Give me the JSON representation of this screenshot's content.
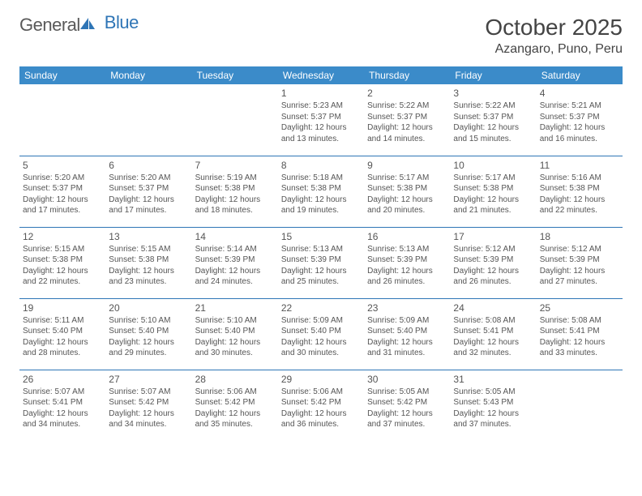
{
  "brand": {
    "name_part1": "General",
    "name_part2": "Blue"
  },
  "title": "October 2025",
  "location": "Azangaro, Puno, Peru",
  "header_row": [
    "Sunday",
    "Monday",
    "Tuesday",
    "Wednesday",
    "Thursday",
    "Friday",
    "Saturday"
  ],
  "colors": {
    "header_bg": "#3b8bc9",
    "header_text": "#ffffff",
    "border": "#2e75b6",
    "body_text": "#555555"
  },
  "weeks": [
    [
      {
        "n": "",
        "lines": []
      },
      {
        "n": "",
        "lines": []
      },
      {
        "n": "",
        "lines": []
      },
      {
        "n": "1",
        "lines": [
          "Sunrise: 5:23 AM",
          "Sunset: 5:37 PM",
          "Daylight: 12 hours",
          "and 13 minutes."
        ]
      },
      {
        "n": "2",
        "lines": [
          "Sunrise: 5:22 AM",
          "Sunset: 5:37 PM",
          "Daylight: 12 hours",
          "and 14 minutes."
        ]
      },
      {
        "n": "3",
        "lines": [
          "Sunrise: 5:22 AM",
          "Sunset: 5:37 PM",
          "Daylight: 12 hours",
          "and 15 minutes."
        ]
      },
      {
        "n": "4",
        "lines": [
          "Sunrise: 5:21 AM",
          "Sunset: 5:37 PM",
          "Daylight: 12 hours",
          "and 16 minutes."
        ]
      }
    ],
    [
      {
        "n": "5",
        "lines": [
          "Sunrise: 5:20 AM",
          "Sunset: 5:37 PM",
          "Daylight: 12 hours",
          "and 17 minutes."
        ]
      },
      {
        "n": "6",
        "lines": [
          "Sunrise: 5:20 AM",
          "Sunset: 5:37 PM",
          "Daylight: 12 hours",
          "and 17 minutes."
        ]
      },
      {
        "n": "7",
        "lines": [
          "Sunrise: 5:19 AM",
          "Sunset: 5:38 PM",
          "Daylight: 12 hours",
          "and 18 minutes."
        ]
      },
      {
        "n": "8",
        "lines": [
          "Sunrise: 5:18 AM",
          "Sunset: 5:38 PM",
          "Daylight: 12 hours",
          "and 19 minutes."
        ]
      },
      {
        "n": "9",
        "lines": [
          "Sunrise: 5:17 AM",
          "Sunset: 5:38 PM",
          "Daylight: 12 hours",
          "and 20 minutes."
        ]
      },
      {
        "n": "10",
        "lines": [
          "Sunrise: 5:17 AM",
          "Sunset: 5:38 PM",
          "Daylight: 12 hours",
          "and 21 minutes."
        ]
      },
      {
        "n": "11",
        "lines": [
          "Sunrise: 5:16 AM",
          "Sunset: 5:38 PM",
          "Daylight: 12 hours",
          "and 22 minutes."
        ]
      }
    ],
    [
      {
        "n": "12",
        "lines": [
          "Sunrise: 5:15 AM",
          "Sunset: 5:38 PM",
          "Daylight: 12 hours",
          "and 22 minutes."
        ]
      },
      {
        "n": "13",
        "lines": [
          "Sunrise: 5:15 AM",
          "Sunset: 5:38 PM",
          "Daylight: 12 hours",
          "and 23 minutes."
        ]
      },
      {
        "n": "14",
        "lines": [
          "Sunrise: 5:14 AM",
          "Sunset: 5:39 PM",
          "Daylight: 12 hours",
          "and 24 minutes."
        ]
      },
      {
        "n": "15",
        "lines": [
          "Sunrise: 5:13 AM",
          "Sunset: 5:39 PM",
          "Daylight: 12 hours",
          "and 25 minutes."
        ]
      },
      {
        "n": "16",
        "lines": [
          "Sunrise: 5:13 AM",
          "Sunset: 5:39 PM",
          "Daylight: 12 hours",
          "and 26 minutes."
        ]
      },
      {
        "n": "17",
        "lines": [
          "Sunrise: 5:12 AM",
          "Sunset: 5:39 PM",
          "Daylight: 12 hours",
          "and 26 minutes."
        ]
      },
      {
        "n": "18",
        "lines": [
          "Sunrise: 5:12 AM",
          "Sunset: 5:39 PM",
          "Daylight: 12 hours",
          "and 27 minutes."
        ]
      }
    ],
    [
      {
        "n": "19",
        "lines": [
          "Sunrise: 5:11 AM",
          "Sunset: 5:40 PM",
          "Daylight: 12 hours",
          "and 28 minutes."
        ]
      },
      {
        "n": "20",
        "lines": [
          "Sunrise: 5:10 AM",
          "Sunset: 5:40 PM",
          "Daylight: 12 hours",
          "and 29 minutes."
        ]
      },
      {
        "n": "21",
        "lines": [
          "Sunrise: 5:10 AM",
          "Sunset: 5:40 PM",
          "Daylight: 12 hours",
          "and 30 minutes."
        ]
      },
      {
        "n": "22",
        "lines": [
          "Sunrise: 5:09 AM",
          "Sunset: 5:40 PM",
          "Daylight: 12 hours",
          "and 30 minutes."
        ]
      },
      {
        "n": "23",
        "lines": [
          "Sunrise: 5:09 AM",
          "Sunset: 5:40 PM",
          "Daylight: 12 hours",
          "and 31 minutes."
        ]
      },
      {
        "n": "24",
        "lines": [
          "Sunrise: 5:08 AM",
          "Sunset: 5:41 PM",
          "Daylight: 12 hours",
          "and 32 minutes."
        ]
      },
      {
        "n": "25",
        "lines": [
          "Sunrise: 5:08 AM",
          "Sunset: 5:41 PM",
          "Daylight: 12 hours",
          "and 33 minutes."
        ]
      }
    ],
    [
      {
        "n": "26",
        "lines": [
          "Sunrise: 5:07 AM",
          "Sunset: 5:41 PM",
          "Daylight: 12 hours",
          "and 34 minutes."
        ]
      },
      {
        "n": "27",
        "lines": [
          "Sunrise: 5:07 AM",
          "Sunset: 5:42 PM",
          "Daylight: 12 hours",
          "and 34 minutes."
        ]
      },
      {
        "n": "28",
        "lines": [
          "Sunrise: 5:06 AM",
          "Sunset: 5:42 PM",
          "Daylight: 12 hours",
          "and 35 minutes."
        ]
      },
      {
        "n": "29",
        "lines": [
          "Sunrise: 5:06 AM",
          "Sunset: 5:42 PM",
          "Daylight: 12 hours",
          "and 36 minutes."
        ]
      },
      {
        "n": "30",
        "lines": [
          "Sunrise: 5:05 AM",
          "Sunset: 5:42 PM",
          "Daylight: 12 hours",
          "and 37 minutes."
        ]
      },
      {
        "n": "31",
        "lines": [
          "Sunrise: 5:05 AM",
          "Sunset: 5:43 PM",
          "Daylight: 12 hours",
          "and 37 minutes."
        ]
      },
      {
        "n": "",
        "lines": []
      }
    ]
  ]
}
